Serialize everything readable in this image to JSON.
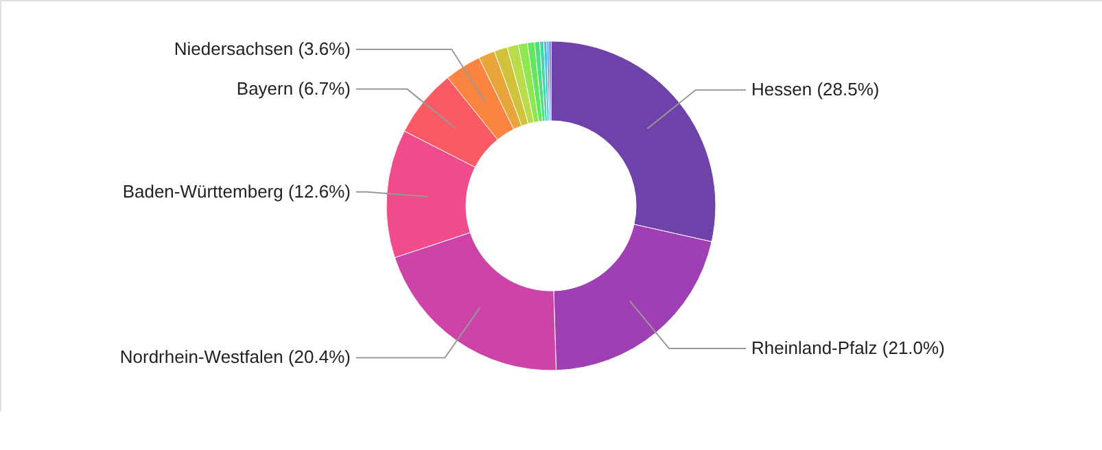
{
  "chart_data": {
    "type": "donut",
    "categories": [
      "Hessen",
      "Rheinland-Pfalz",
      "Nordrhein-Westfalen",
      "Baden-Württemberg",
      "Bayern",
      "Niedersachsen",
      null,
      null,
      null,
      null,
      null,
      null,
      null,
      null,
      null,
      null
    ],
    "values": [
      28.5,
      21.0,
      20.4,
      12.6,
      6.7,
      3.6,
      1.6,
      1.3,
      1.1,
      0.9,
      0.7,
      0.5,
      0.4,
      0.3,
      0.2,
      0.2
    ],
    "value_labels": [
      "(28.5%)",
      "(21.0%)",
      "(20.4%)",
      "(12.6%)",
      "(6.7%)",
      "(3.6%)",
      null,
      null,
      null,
      null,
      null,
      null,
      null,
      null,
      null,
      null
    ],
    "colors": [
      "#6f42aa",
      "#a03eb4",
      "#cc44a8",
      "#f04c8c",
      "#fa5a64",
      "#fb8540",
      "#eaa53a",
      "#d0c23a",
      "#b8dc4a",
      "#8ee650",
      "#60e85a",
      "#4ae07a",
      "#40d8b0",
      "#40c0e0",
      "#4090f0",
      "#5060e0"
    ]
  }
}
